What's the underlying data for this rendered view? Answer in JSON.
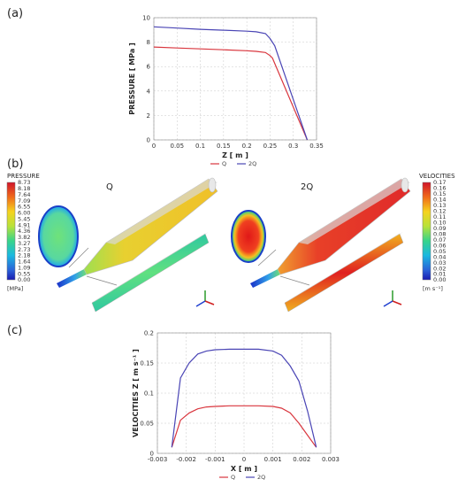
{
  "panels": {
    "a": "(a)",
    "b": "(b)",
    "c": "(c)"
  },
  "colors": {
    "Q": "#d9363e",
    "2Q": "#4a45b5",
    "grid": "#c8c8c8"
  },
  "chart_data": [
    {
      "type": "line",
      "title": "",
      "xlabel": "Z [ m ]",
      "ylabel": "PRESSURE [ MPa ]",
      "xlim": [
        0,
        0.35
      ],
      "ylim": [
        0,
        10
      ],
      "xticks": [
        "0",
        "0.05",
        "0.1",
        "0.15",
        "0.2",
        "0.25",
        "0.3",
        "0.35"
      ],
      "yticks": [
        "0",
        "2",
        "4",
        "6",
        "8",
        "10"
      ],
      "grid": true,
      "legend": "bottom-center",
      "series": [
        {
          "name": "Q",
          "color": "#d9363e",
          "x": [
            0,
            0.05,
            0.1,
            0.15,
            0.2,
            0.22,
            0.24,
            0.25,
            0.255,
            0.33
          ],
          "y": [
            7.6,
            7.52,
            7.45,
            7.38,
            7.3,
            7.25,
            7.15,
            6.9,
            6.7,
            0
          ]
        },
        {
          "name": "2Q",
          "color": "#4a45b5",
          "x": [
            0,
            0.05,
            0.1,
            0.15,
            0.2,
            0.22,
            0.24,
            0.25,
            0.26,
            0.33
          ],
          "y": [
            9.25,
            9.15,
            9.05,
            8.98,
            8.9,
            8.85,
            8.7,
            8.3,
            7.7,
            0
          ]
        }
      ]
    },
    {
      "type": "heatmap",
      "cases": [
        "Q",
        "2Q"
      ],
      "pressure_colorbar": {
        "title": "PRESSURE",
        "unit": "[MPa]",
        "ticks": [
          "8.73",
          "8.18",
          "7.64",
          "7.09",
          "6.55",
          "6.00",
          "5.45",
          "4.91",
          "4.36",
          "3.82",
          "3.27",
          "2.73",
          "2.18",
          "1.64",
          "1.09",
          "0.55",
          "0.00"
        ]
      },
      "velocity_colorbar": {
        "title": "VELOCITIES",
        "unit": "[m s⁻¹]",
        "ticks": [
          "0.17",
          "0.16",
          "0.15",
          "0.14",
          "0.13",
          "0.12",
          "0.11",
          "0.10",
          "0.09",
          "0.08",
          "0.07",
          "0.06",
          "0.05",
          "0.04",
          "0.03",
          "0.02",
          "0.01",
          "0.00"
        ]
      }
    },
    {
      "type": "line",
      "title": "",
      "xlabel": "X [ m ]",
      "ylabel": "VELOCITIES Z [ m s⁻¹ ]",
      "xlim": [
        -0.003,
        0.003
      ],
      "ylim": [
        0,
        0.2
      ],
      "xticks": [
        "-0.003",
        "-0.002",
        "-0.001",
        "0",
        "0.001",
        "0.002",
        "0.003"
      ],
      "yticks": [
        "0",
        "0.05",
        "0.1",
        "0.15",
        "0.2"
      ],
      "grid": true,
      "legend": "bottom-center",
      "series": [
        {
          "name": "Q",
          "color": "#d9363e",
          "x": [
            -0.0025,
            -0.0022,
            -0.0019,
            -0.0016,
            -0.0013,
            -0.001,
            -0.0005,
            0,
            0.0005,
            0.001,
            0.0013,
            0.0016,
            0.0019,
            0.0022,
            0.0025
          ],
          "y": [
            0.01,
            0.055,
            0.067,
            0.074,
            0.077,
            0.078,
            0.079,
            0.079,
            0.079,
            0.078,
            0.075,
            0.067,
            0.05,
            0.03,
            0.01
          ]
        },
        {
          "name": "2Q",
          "color": "#4a45b5",
          "x": [
            -0.0025,
            -0.0022,
            -0.0019,
            -0.0016,
            -0.0013,
            -0.001,
            -0.0005,
            0,
            0.0005,
            0.001,
            0.0013,
            0.0016,
            0.0019,
            0.0022,
            0.0025
          ],
          "y": [
            0.01,
            0.125,
            0.15,
            0.165,
            0.17,
            0.172,
            0.173,
            0.173,
            0.173,
            0.17,
            0.163,
            0.145,
            0.12,
            0.07,
            0.01
          ]
        }
      ]
    }
  ]
}
